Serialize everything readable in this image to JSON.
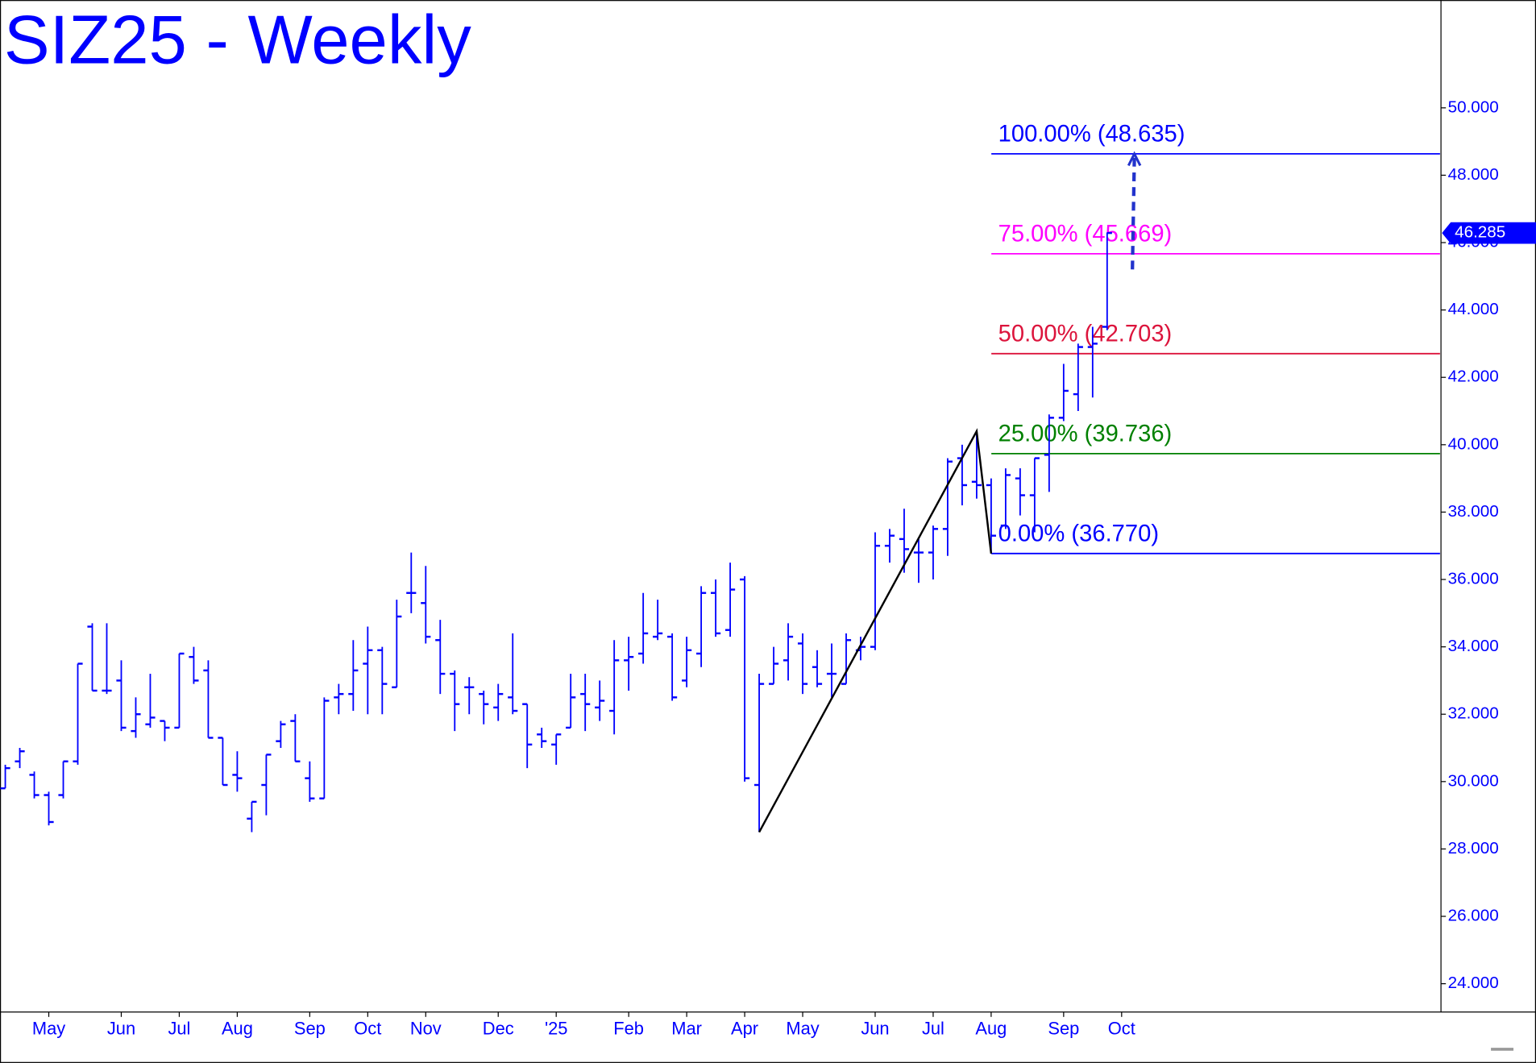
{
  "chart_data": {
    "type": "ohlc",
    "title": "SIZ25 - Weekly",
    "color": "#0000ff",
    "categories": [
      null,
      null,
      null,
      "May",
      null,
      null,
      null,
      null,
      "Jun",
      null,
      null,
      null,
      "Jul",
      null,
      null,
      null,
      "Aug",
      null,
      null,
      null,
      null,
      "Sep",
      null,
      null,
      null,
      "Oct",
      null,
      null,
      null,
      "Nov",
      null,
      null,
      null,
      null,
      "Dec",
      null,
      null,
      null,
      "'25",
      null,
      null,
      null,
      null,
      "Feb",
      null,
      null,
      null,
      "Mar",
      null,
      null,
      null,
      "Apr",
      null,
      null,
      null,
      "May",
      null,
      null,
      null,
      null,
      "Jun",
      null,
      null,
      null,
      "Jul",
      null,
      null,
      null,
      "Aug",
      null,
      null,
      null,
      null,
      "Sep",
      null,
      null,
      null,
      "Oct"
    ],
    "open": [
      29.8,
      30.6,
      30.2,
      29.6,
      29.6,
      30.6,
      34.6,
      32.7,
      33.0,
      31.5,
      31.7,
      31.8,
      31.6,
      33.7,
      33.3,
      31.3,
      30.2,
      28.9,
      29.9,
      31.2,
      31.8,
      30.1,
      29.5,
      32.5,
      32.6,
      33.5,
      33.9,
      32.8,
      35.6,
      35.3,
      34.2,
      33.2,
      32.8,
      32.6,
      32.2,
      32.5,
      32.3,
      31.4,
      31.1,
      31.6,
      32.6,
      32.2,
      32.1,
      33.6,
      33.8,
      34.3,
      34.3,
      33.0,
      33.8,
      35.6,
      34.5,
      36.0,
      29.9,
      32.9,
      33.6,
      34.1,
      33.4,
      33.2,
      32.9,
      33.9,
      34.0,
      37.0,
      37.2,
      36.8,
      36.8,
      37.5,
      39.6,
      38.9,
      38.8,
      37.6,
      39.0,
      38.5,
      39.7,
      40.8,
      41.5,
      42.9,
      43.5,
      null
    ],
    "high": [
      30.5,
      31.0,
      30.3,
      29.7,
      30.6,
      33.5,
      34.7,
      34.7,
      33.6,
      32.5,
      33.2,
      31.8,
      33.8,
      34.0,
      33.6,
      31.3,
      30.9,
      29.4,
      30.8,
      31.8,
      32.0,
      30.6,
      32.5,
      32.9,
      34.2,
      34.6,
      34.0,
      35.4,
      36.8,
      36.4,
      34.8,
      33.3,
      33.1,
      32.7,
      32.9,
      34.4,
      32.3,
      31.6,
      31.4,
      33.2,
      33.2,
      33.0,
      34.2,
      34.3,
      35.6,
      35.4,
      34.4,
      34.3,
      35.8,
      36.0,
      36.5,
      36.1,
      33.2,
      34.0,
      34.7,
      34.4,
      33.9,
      34.1,
      34.4,
      34.3,
      37.4,
      37.5,
      38.1,
      37.2,
      37.6,
      39.6,
      40.0,
      40.4,
      39.0,
      39.3,
      39.3,
      39.6,
      40.9,
      42.4,
      43.0,
      43.5,
      46.3,
      null
    ],
    "low": [
      29.8,
      30.4,
      29.5,
      28.7,
      29.5,
      30.5,
      32.7,
      32.6,
      31.5,
      31.3,
      31.6,
      31.2,
      31.6,
      32.9,
      31.3,
      29.9,
      29.7,
      28.5,
      29.0,
      31.0,
      30.6,
      29.4,
      29.5,
      32.0,
      32.1,
      32.0,
      32.0,
      32.8,
      35.0,
      34.1,
      32.6,
      31.5,
      32.0,
      31.7,
      31.8,
      32.0,
      30.4,
      31.0,
      30.5,
      31.6,
      31.5,
      31.8,
      31.4,
      32.7,
      33.5,
      34.2,
      32.4,
      32.8,
      33.4,
      34.3,
      34.3,
      30.0,
      28.5,
      32.9,
      33.0,
      32.6,
      32.8,
      32.5,
      32.9,
      33.6,
      33.9,
      36.5,
      36.2,
      35.9,
      36.0,
      36.7,
      38.2,
      38.4,
      36.77,
      37.5,
      37.9,
      37.4,
      38.6,
      40.7,
      41.0,
      41.4,
      43.4,
      null
    ],
    "close": [
      30.4,
      30.9,
      29.6,
      28.8,
      30.6,
      33.5,
      32.7,
      32.7,
      31.6,
      32.0,
      31.9,
      31.6,
      33.8,
      33.0,
      31.3,
      29.9,
      30.1,
      29.4,
      30.8,
      31.7,
      30.6,
      29.5,
      32.4,
      32.6,
      33.3,
      33.9,
      32.9,
      34.9,
      35.6,
      34.3,
      33.2,
      32.3,
      32.8,
      32.3,
      32.6,
      32.1,
      31.1,
      31.2,
      31.4,
      32.5,
      32.3,
      32.4,
      33.6,
      33.7,
      34.4,
      34.4,
      32.5,
      33.9,
      35.6,
      34.4,
      35.7,
      30.1,
      32.9,
      33.5,
      34.3,
      32.9,
      32.9,
      33.2,
      34.2,
      34.0,
      37.0,
      37.3,
      36.9,
      36.8,
      37.5,
      39.5,
      38.8,
      38.8,
      37.3,
      39.1,
      38.5,
      39.6,
      40.8,
      41.6,
      42.9,
      43.0,
      46.285,
      null
    ],
    "last_price": 46.285,
    "ylim": [
      23.16,
      53.2
    ],
    "yticks": [
      {
        "value": 24,
        "label": "24.000"
      },
      {
        "value": 26,
        "label": "26.000"
      },
      {
        "value": 28,
        "label": "28.000"
      },
      {
        "value": 30,
        "label": "30.000"
      },
      {
        "value": 32,
        "label": "32.000"
      },
      {
        "value": 34,
        "label": "34.000"
      },
      {
        "value": 36,
        "label": "36.000"
      },
      {
        "value": 38,
        "label": "38.000"
      },
      {
        "value": 40,
        "label": "40.000"
      },
      {
        "value": 42,
        "label": "42.000"
      },
      {
        "value": 44,
        "label": "44.000"
      },
      {
        "value": 46,
        "label": "46.000"
      },
      {
        "value": 48,
        "label": "48.000"
      },
      {
        "value": 50,
        "label": "50.000"
      }
    ],
    "levels": [
      {
        "label": "100.00% (48.635)",
        "value": 48.635,
        "color": "#0000ff"
      },
      {
        "label": "75.00% (45.669)",
        "value": 45.669,
        "color": "#ff00ff"
      },
      {
        "label": "50.00% (42.703)",
        "value": 42.703,
        "color": "#dc143c"
      },
      {
        "label": "25.00% (39.736)",
        "value": 39.736,
        "color": "#008000"
      },
      {
        "label": "0.00% (36.770)",
        "value": 36.77,
        "color": "#0000ff"
      }
    ]
  }
}
